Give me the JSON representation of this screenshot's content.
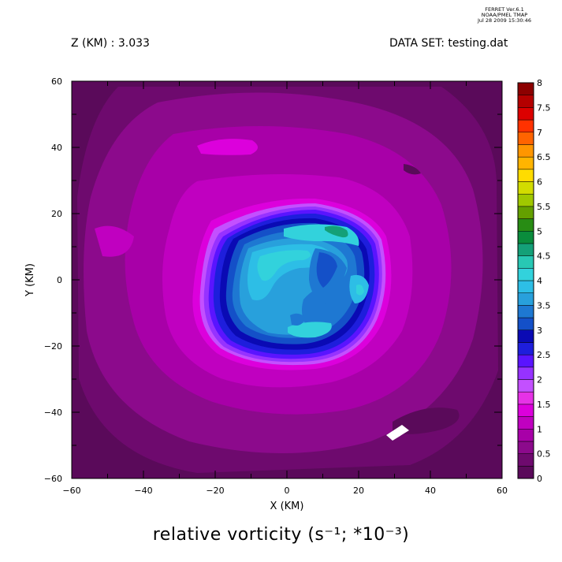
{
  "header": {
    "stamp_line1": "FERRET  Ver.6.1",
    "stamp_line2": "NOAA/PMEL TMAP",
    "stamp_line3": "Jul 28 2009 15:30:46",
    "left_label": "Z (KM) : 3.033",
    "right_label": "DATA SET: testing.dat"
  },
  "chart_data": {
    "type": "heatmap",
    "title": "relative vorticity (s⁻¹; *10⁻³)",
    "xlabel": "X (KM)",
    "ylabel": "Y (KM)",
    "xlim": [
      -60,
      60
    ],
    "ylim": [
      -60,
      60
    ],
    "xticks": [
      -60,
      -40,
      -20,
      0,
      20,
      40,
      60
    ],
    "yticks": [
      -60,
      -40,
      -20,
      0,
      20,
      40,
      60
    ],
    "xtick_labels": [
      "−60",
      "−40",
      "−20",
      "0",
      "20",
      "40",
      "60"
    ],
    "ytick_labels": [
      "−60",
      "−40",
      "−20",
      "0",
      "20",
      "40",
      "60"
    ],
    "colorbar": {
      "levels": [
        0,
        0.25,
        0.5,
        0.75,
        1,
        1.25,
        1.5,
        1.75,
        2,
        2.25,
        2.5,
        2.75,
        3,
        3.25,
        3.5,
        3.75,
        4,
        4.25,
        4.5,
        4.75,
        5,
        5.25,
        5.5,
        5.75,
        6,
        6.25,
        6.5,
        6.75,
        7,
        7.25,
        7.5,
        7.75,
        8
      ],
      "labels": [
        "0",
        "0.5",
        "1",
        "1.5",
        "2",
        "2.5",
        "3",
        "3.5",
        "4",
        "4.5",
        "5",
        "5.5",
        "6",
        "6.5",
        "7",
        "7.5",
        "8"
      ],
      "colors": [
        "#5a0a5a",
        "#6e0a6e",
        "#8c0a8c",
        "#a800a8",
        "#c000c0",
        "#dc00dc",
        "#e632e6",
        "#c350ff",
        "#9632ff",
        "#5a14ff",
        "#1e1edc",
        "#0a0ab4",
        "#1450c8",
        "#1e78d2",
        "#28a0dc",
        "#2dbee6",
        "#32d2dc",
        "#28c8b4",
        "#14a078",
        "#0a8c3c",
        "#288c14",
        "#64a000",
        "#a0c800",
        "#d2dc00",
        "#ffdc00",
        "#ffb400",
        "#ff9600",
        "#ff6400",
        "#ff3200",
        "#dc0000",
        "#b40000",
        "#8c0000"
      ]
    },
    "features": [
      {
        "kind": "vortex-core",
        "x": 5,
        "y": 0,
        "value_range": [
          2.5,
          4.5
        ],
        "description": "high vorticity ring"
      },
      {
        "kind": "missing-data",
        "x": 31,
        "y": -46
      }
    ]
  }
}
